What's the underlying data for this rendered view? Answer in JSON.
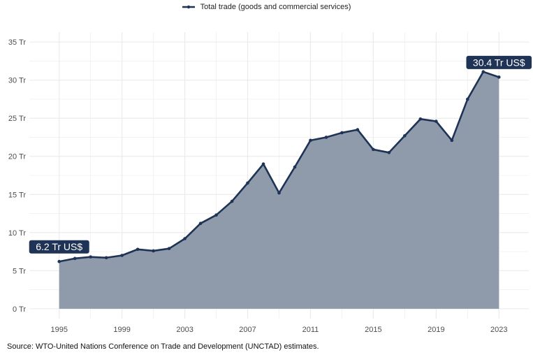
{
  "legend": {
    "label": "Total trade (goods and commercial services)"
  },
  "source": "Source: WTO-United Nations Conference on Trade and Development (UNCTAD) estimates.",
  "colors": {
    "line": "#1e3355",
    "area": "#8f9aab",
    "grid": "#ebebeb",
    "label_bg": "#1e3355"
  },
  "chart_data": {
    "type": "area",
    "title": "",
    "xlabel": "",
    "ylabel": "",
    "xlim": [
      1993.1,
      2024.9
    ],
    "ylim": [
      -1.3,
      36.3
    ],
    "x_ticks": [
      1995,
      1999,
      2003,
      2007,
      2011,
      2015,
      2019,
      2023
    ],
    "y_ticks": [
      0,
      5,
      10,
      15,
      20,
      25,
      30,
      35
    ],
    "y_tick_labels": [
      "0 Tr",
      "5 Tr",
      "10 Tr",
      "15 Tr",
      "20 Tr",
      "25 Tr",
      "30 Tr",
      "35 Tr"
    ],
    "series": [
      {
        "name": "Total trade (goods and commercial services)",
        "x": [
          1995,
          1996,
          1997,
          1998,
          1999,
          2000,
          2001,
          2002,
          2003,
          2004,
          2005,
          2006,
          2007,
          2008,
          2009,
          2010,
          2011,
          2012,
          2013,
          2014,
          2015,
          2016,
          2017,
          2018,
          2019,
          2020,
          2021,
          2022,
          2023
        ],
        "values": [
          6.2,
          6.6,
          6.8,
          6.7,
          7.0,
          7.8,
          7.6,
          7.9,
          9.2,
          11.2,
          12.3,
          14.1,
          16.5,
          19.0,
          15.2,
          18.6,
          22.1,
          22.5,
          23.1,
          23.5,
          20.9,
          20.5,
          22.7,
          24.9,
          24.6,
          22.1,
          27.5,
          31.1,
          30.4
        ]
      }
    ],
    "annotations": [
      {
        "x": 1995,
        "y": 6.2,
        "text": "6.2 Tr US$"
      },
      {
        "x": 2023,
        "y": 30.4,
        "text": "30.4 Tr US$"
      }
    ]
  }
}
